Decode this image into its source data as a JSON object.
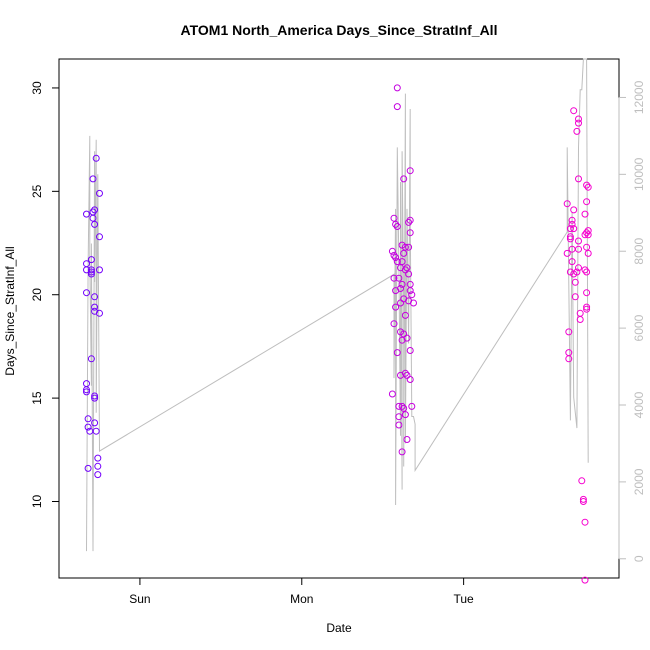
{
  "chart_data": {
    "type": "scatter",
    "title": "ATOM1 North_America Days_Since_StratInf_All",
    "xlabel": "Date",
    "ylabel": "Days_Since_StratInf_All",
    "x_tick_labels": [
      "Sun",
      "Mon",
      "Tue"
    ],
    "x_ticks": [
      0.0,
      1.0,
      2.0
    ],
    "xlim": [
      -0.5,
      2.96
    ],
    "ylim": [
      6.3,
      31.4
    ],
    "y_ticks": [
      10,
      15,
      20,
      25,
      30
    ],
    "y2lim": [
      -500,
      13000
    ],
    "y2_ticks": [
      0,
      2000,
      4000,
      6000,
      8000,
      10000,
      12000
    ],
    "grid": false,
    "colors": {
      "points_start": "#6a00ff",
      "points_end": "#ff00cc",
      "line": "#bebebe"
    },
    "series": [
      {
        "kind": "points",
        "values": [
          [
            -0.33,
            23.9
          ],
          [
            -0.33,
            21.5
          ],
          [
            -0.33,
            21.2
          ],
          [
            -0.33,
            20.1
          ],
          [
            -0.33,
            15.7
          ],
          [
            -0.33,
            15.4
          ],
          [
            -0.33,
            15.3
          ],
          [
            -0.32,
            14.0
          ],
          [
            -0.32,
            13.6
          ],
          [
            -0.31,
            13.4
          ],
          [
            -0.32,
            11.6
          ],
          [
            -0.3,
            21.7
          ],
          [
            -0.3,
            21.0
          ],
          [
            -0.3,
            21.2
          ],
          [
            -0.3,
            21.1
          ],
          [
            -0.3,
            16.9
          ],
          [
            -0.29,
            25.6
          ],
          [
            -0.29,
            24.0
          ],
          [
            -0.29,
            23.7
          ],
          [
            -0.28,
            24.1
          ],
          [
            -0.28,
            23.4
          ],
          [
            -0.28,
            19.9
          ],
          [
            -0.28,
            19.4
          ],
          [
            -0.28,
            19.2
          ],
          [
            -0.28,
            15.1
          ],
          [
            -0.28,
            15.0
          ],
          [
            -0.28,
            13.8
          ],
          [
            -0.27,
            26.6
          ],
          [
            -0.27,
            13.4
          ],
          [
            -0.26,
            12.1
          ],
          [
            -0.26,
            11.7
          ],
          [
            -0.26,
            11.3
          ],
          [
            -0.25,
            24.9
          ],
          [
            -0.25,
            22.8
          ],
          [
            -0.25,
            21.2
          ],
          [
            -0.25,
            19.1
          ],
          [
            1.56,
            15.2
          ],
          [
            1.56,
            22.1
          ],
          [
            1.57,
            23.7
          ],
          [
            1.57,
            21.9
          ],
          [
            1.57,
            20.8
          ],
          [
            1.57,
            18.6
          ],
          [
            1.58,
            23.4
          ],
          [
            1.58,
            21.8
          ],
          [
            1.58,
            20.2
          ],
          [
            1.58,
            19.4
          ],
          [
            1.59,
            30.0
          ],
          [
            1.59,
            29.1
          ],
          [
            1.59,
            23.3
          ],
          [
            1.59,
            21.6
          ],
          [
            1.59,
            17.2
          ],
          [
            1.6,
            20.8
          ],
          [
            1.6,
            14.6
          ],
          [
            1.6,
            14.1
          ],
          [
            1.6,
            13.7
          ],
          [
            1.61,
            21.3
          ],
          [
            1.61,
            20.3
          ],
          [
            1.61,
            19.6
          ],
          [
            1.61,
            18.2
          ],
          [
            1.61,
            16.1
          ],
          [
            1.62,
            22.4
          ],
          [
            1.62,
            21.6
          ],
          [
            1.62,
            20.5
          ],
          [
            1.62,
            17.8
          ],
          [
            1.62,
            14.6
          ],
          [
            1.62,
            12.4
          ],
          [
            1.63,
            25.6
          ],
          [
            1.63,
            22.0
          ],
          [
            1.63,
            19.8
          ],
          [
            1.63,
            18.1
          ],
          [
            1.63,
            14.5
          ],
          [
            1.64,
            22.3
          ],
          [
            1.64,
            21.2
          ],
          [
            1.64,
            19.0
          ],
          [
            1.64,
            16.2
          ],
          [
            1.64,
            14.2
          ],
          [
            1.65,
            21.3
          ],
          [
            1.65,
            17.9
          ],
          [
            1.65,
            16.1
          ],
          [
            1.65,
            13.0
          ],
          [
            1.66,
            23.5
          ],
          [
            1.66,
            22.3
          ],
          [
            1.66,
            21.0
          ],
          [
            1.66,
            19.7
          ],
          [
            1.67,
            26.0
          ],
          [
            1.67,
            23.6
          ],
          [
            1.67,
            23.0
          ],
          [
            1.67,
            20.5
          ],
          [
            1.67,
            20.2
          ],
          [
            1.67,
            17.3
          ],
          [
            1.67,
            15.9
          ],
          [
            1.68,
            14.6
          ],
          [
            1.68,
            20.0
          ],
          [
            1.69,
            19.6
          ],
          [
            2.64,
            24.4
          ],
          [
            2.64,
            22.0
          ],
          [
            2.65,
            18.2
          ],
          [
            2.65,
            17.2
          ],
          [
            2.65,
            16.9
          ],
          [
            2.66,
            23.2
          ],
          [
            2.66,
            22.8
          ],
          [
            2.66,
            22.7
          ],
          [
            2.66,
            21.1
          ],
          [
            2.67,
            23.6
          ],
          [
            2.67,
            23.4
          ],
          [
            2.67,
            22.2
          ],
          [
            2.67,
            21.6
          ],
          [
            2.68,
            28.9
          ],
          [
            2.68,
            24.1
          ],
          [
            2.68,
            23.2
          ],
          [
            2.68,
            21.0
          ],
          [
            2.69,
            20.6
          ],
          [
            2.69,
            19.9
          ],
          [
            2.7,
            27.9
          ],
          [
            2.7,
            21.1
          ],
          [
            2.71,
            28.5
          ],
          [
            2.71,
            28.3
          ],
          [
            2.71,
            25.6
          ],
          [
            2.71,
            22.6
          ],
          [
            2.71,
            22.2
          ],
          [
            2.71,
            21.3
          ],
          [
            2.72,
            19.1
          ],
          [
            2.72,
            18.8
          ],
          [
            2.73,
            11.0
          ],
          [
            2.74,
            10.0
          ],
          [
            2.74,
            10.1
          ],
          [
            2.75,
            23.9
          ],
          [
            2.75,
            22.9
          ],
          [
            2.75,
            21.2
          ],
          [
            2.75,
            9.0
          ],
          [
            2.75,
            6.2
          ],
          [
            2.76,
            25.3
          ],
          [
            2.76,
            24.5
          ],
          [
            2.76,
            23.0
          ],
          [
            2.76,
            22.3
          ],
          [
            2.76,
            21.1
          ],
          [
            2.76,
            20.1
          ],
          [
            2.76,
            19.3
          ],
          [
            2.76,
            19.4
          ],
          [
            2.77,
            25.2
          ],
          [
            2.77,
            23.1
          ],
          [
            2.77,
            22.9
          ],
          [
            2.77,
            22.0
          ]
        ]
      },
      {
        "kind": "line",
        "axis": "right",
        "values": [
          [
            -0.33,
            200
          ],
          [
            -0.32,
            7600
          ],
          [
            -0.31,
            11000
          ],
          [
            -0.31,
            7800
          ],
          [
            -0.3,
            4500
          ],
          [
            -0.3,
            8200
          ],
          [
            -0.29,
            200
          ],
          [
            -0.28,
            10600
          ],
          [
            -0.28,
            7200
          ],
          [
            -0.27,
            10900
          ],
          [
            -0.27,
            3800
          ],
          [
            -0.26,
            10000
          ],
          [
            -0.25,
            2800
          ],
          [
            1.57,
            7400
          ],
          [
            1.57,
            4700
          ],
          [
            1.58,
            9100
          ],
          [
            1.58,
            1400
          ],
          [
            1.59,
            10700
          ],
          [
            1.6,
            7600
          ],
          [
            1.61,
            3200
          ],
          [
            1.61,
            9800
          ],
          [
            1.62,
            1800
          ],
          [
            1.62,
            10600
          ],
          [
            1.63,
            6500
          ],
          [
            1.63,
            2400
          ],
          [
            1.64,
            12100
          ],
          [
            1.64,
            3000
          ],
          [
            1.65,
            9100
          ],
          [
            1.66,
            5600
          ],
          [
            1.67,
            11700
          ],
          [
            1.67,
            8900
          ],
          [
            1.68,
            3700
          ],
          [
            1.69,
            3700
          ],
          [
            1.7,
            3500
          ],
          [
            1.7,
            2300
          ],
          [
            2.64,
            8500
          ],
          [
            2.64,
            10700
          ],
          [
            2.66,
            3600
          ],
          [
            2.67,
            9000
          ],
          [
            2.68,
            4200
          ],
          [
            2.7,
            3400
          ],
          [
            2.71,
            10700
          ],
          [
            2.72,
            12200
          ],
          [
            2.73,
            12200
          ],
          [
            2.74,
            13000
          ],
          [
            2.76,
            13000
          ],
          [
            2.77,
            2500
          ]
        ]
      }
    ]
  }
}
